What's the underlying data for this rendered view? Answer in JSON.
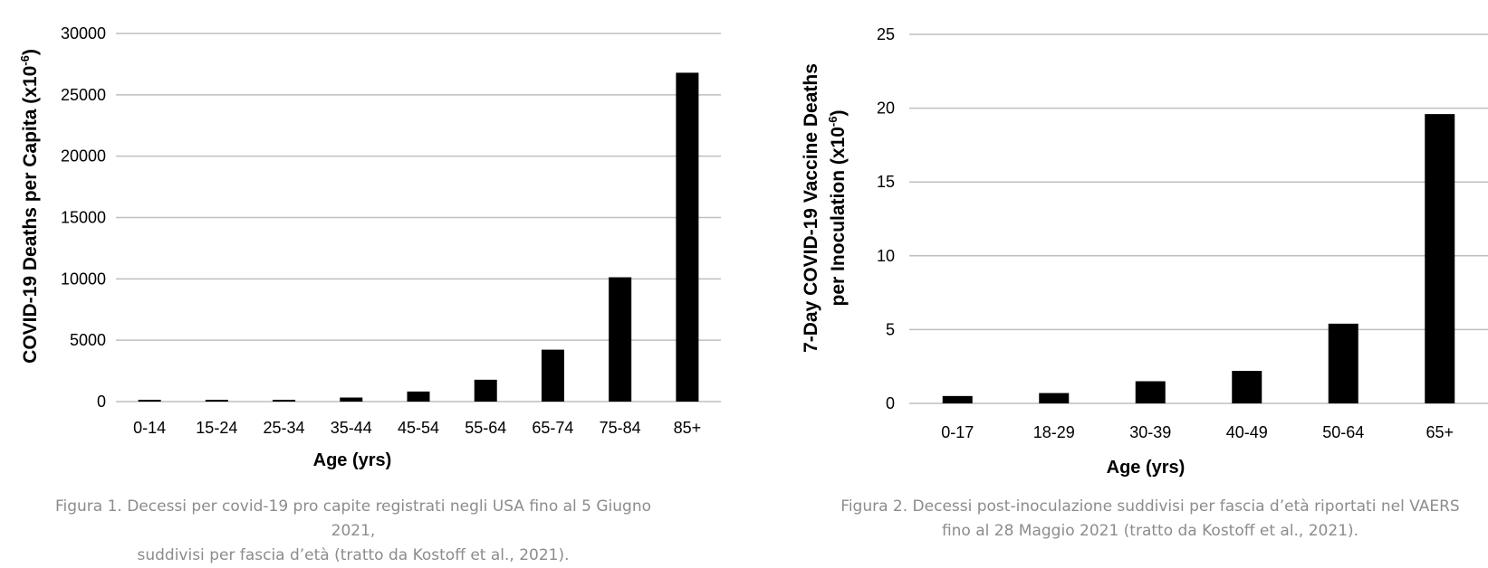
{
  "colors": {
    "bar": "#000000",
    "grid": "#bfbfbf",
    "caption": "#8c8c8c"
  },
  "chart_data": [
    {
      "type": "bar",
      "title": "",
      "xlabel": "Age (yrs)",
      "ylabel": "COVID-19 Deaths per Capita (x10-6)",
      "ylim": [
        0,
        30000
      ],
      "yticks": [
        "0",
        "5000",
        "10000",
        "15000",
        "20000",
        "25000",
        "30000"
      ],
      "grid": true,
      "categories": [
        "0-14",
        "15-24",
        "25-34",
        "35-44",
        "45-54",
        "55-64",
        "65-74",
        "75-84",
        "85+"
      ],
      "values": [
        25,
        60,
        130,
        330,
        820,
        1780,
        4230,
        10130,
        26800
      ]
    },
    {
      "type": "bar",
      "title": "",
      "xlabel": "Age (yrs)",
      "ylabel": "7-Day COVID-19 Vaccine Deaths per Inoculation (x10-6)",
      "ylim": [
        0,
        25
      ],
      "yticks": [
        "0",
        "5",
        "10",
        "15",
        "20",
        "25"
      ],
      "grid": true,
      "categories": [
        "0-17",
        "18-29",
        "30-39",
        "40-49",
        "50-64",
        "65+"
      ],
      "values": [
        0.5,
        0.7,
        1.5,
        2.2,
        5.4,
        19.6
      ]
    }
  ],
  "captions": {
    "figure1": {
      "line1": "Figura 1. Decessi per covid-19 pro capite registrati negli USA fino al 5 Giugno 2021,",
      "line2": "suddivisi per fascia d’età (tratto da Kostoff et al., 2021)."
    },
    "figure2": {
      "line1": "Figura 2. Decessi post-inoculazione suddivisi per fascia d’età riportati nel VAERS",
      "line2": "fino al 28 Maggio 2021 (tratto da Kostoff et al., 2021)."
    }
  }
}
